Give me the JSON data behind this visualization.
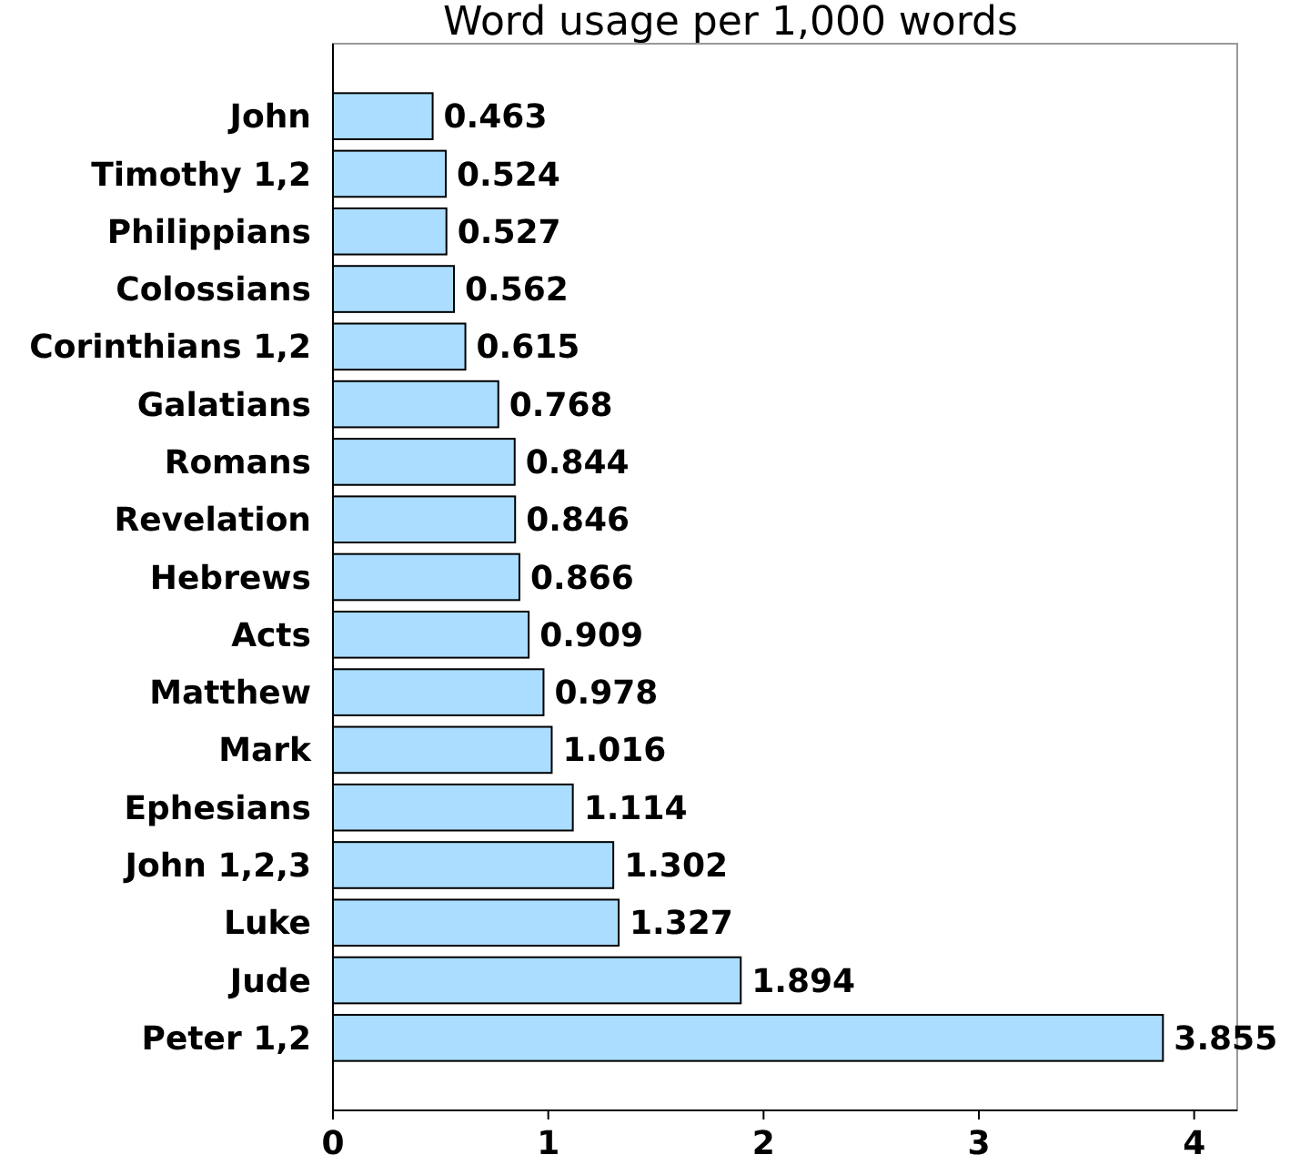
{
  "chart_data": {
    "type": "bar",
    "orientation": "horizontal",
    "title": "Word usage per 1,000 words",
    "categories": [
      "John",
      "Timothy 1,2",
      "Philippians",
      "Colossians",
      "Corinthians 1,2",
      "Galatians",
      "Romans",
      "Revelation",
      "Hebrews",
      "Acts",
      "Matthew",
      "Mark",
      "Ephesians",
      "John 1,2,3",
      "Luke",
      "Jude",
      "Peter 1,2"
    ],
    "values": [
      0.463,
      0.524,
      0.527,
      0.562,
      0.615,
      0.768,
      0.844,
      0.846,
      0.866,
      0.909,
      0.978,
      1.016,
      1.114,
      1.302,
      1.327,
      1.894,
      3.855
    ],
    "color": "#aaddff",
    "xlim": [
      0,
      4.2
    ],
    "xticks": [
      0,
      1,
      2,
      3,
      4
    ],
    "data_labels": true
  }
}
